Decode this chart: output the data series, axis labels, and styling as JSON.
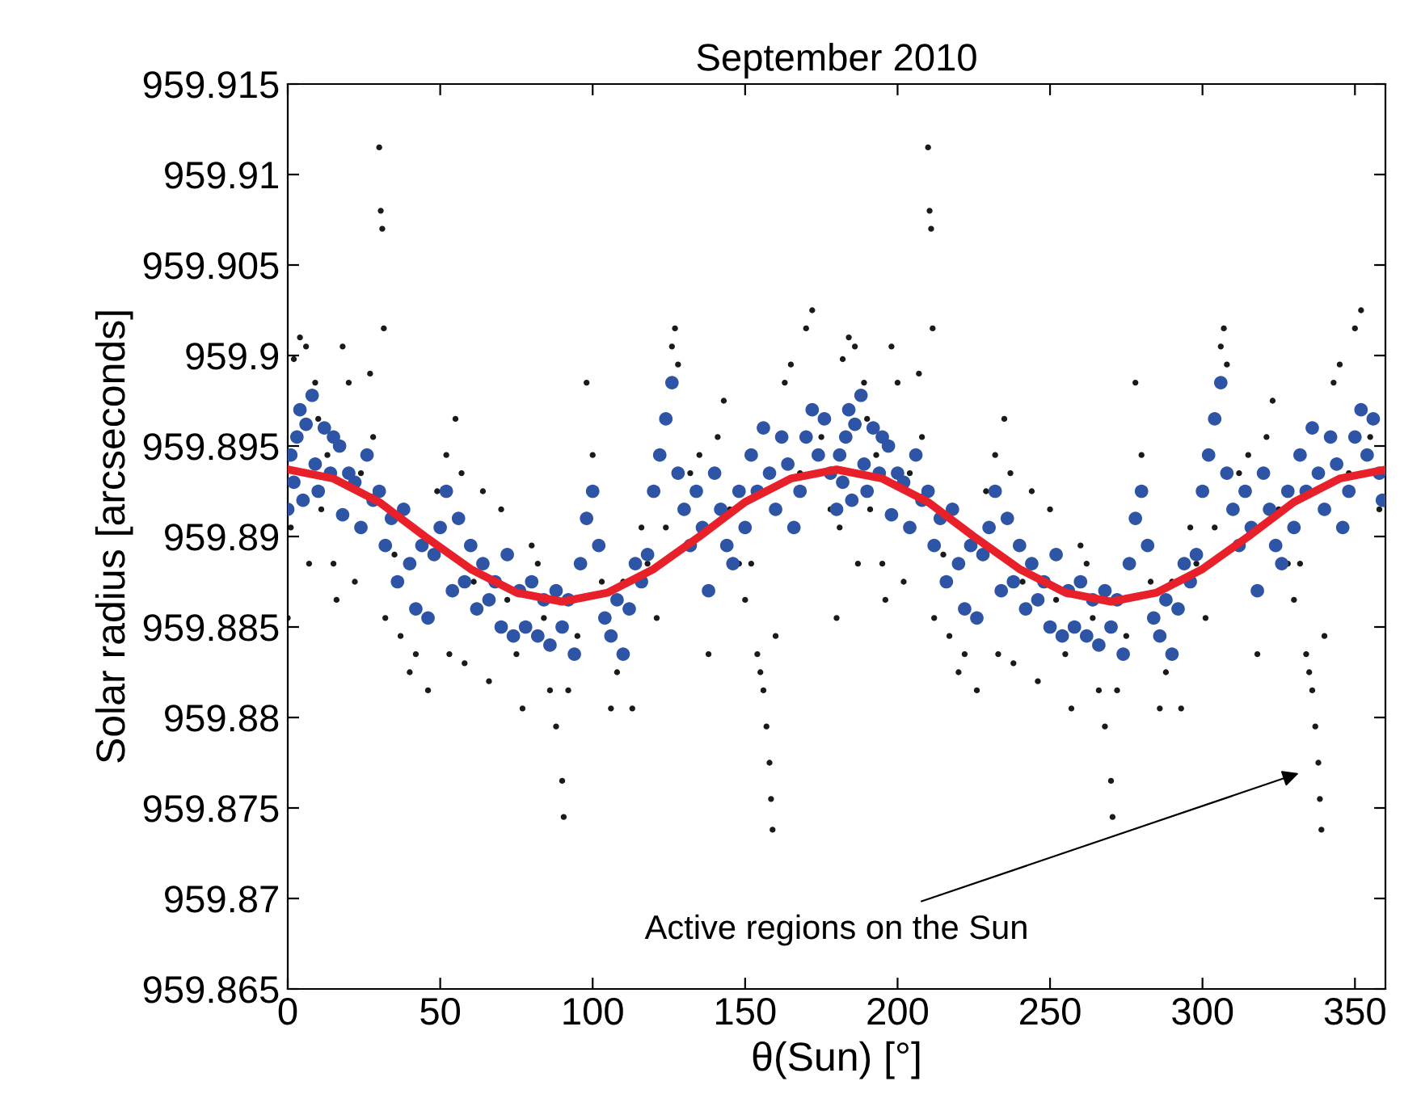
{
  "chart_data": {
    "type": "scatter",
    "title": "September 2010",
    "xlabel": "θ(Sun) [°]",
    "ylabel": "Solar radius [arcseconds]",
    "xlim": [
      0,
      360
    ],
    "xticks": [
      0,
      50,
      100,
      150,
      200,
      250,
      300,
      350
    ],
    "ylim": [
      959.865,
      959.915
    ],
    "yticks": [
      959.865,
      959.87,
      959.875,
      959.88,
      959.885,
      959.89,
      959.895,
      959.9,
      959.905,
      959.91,
      959.915
    ],
    "grid": false,
    "marker": "circle",
    "annotations": [
      "Active regions on the Sun"
    ],
    "series": [
      {
        "color": "#1a1a1a",
        "x": [
          0,
          1,
          2,
          4,
          6,
          7,
          9,
          10,
          11,
          13,
          15,
          16,
          18,
          20,
          22,
          24,
          27,
          28,
          30,
          30.5,
          31,
          31.5,
          32,
          35,
          37,
          40,
          42,
          46,
          49,
          52,
          53,
          55,
          57,
          58,
          61,
          64,
          66,
          70,
          72,
          75,
          77,
          80,
          82,
          84,
          86,
          88,
          90,
          90.5,
          92,
          95,
          98,
          100,
          103,
          106,
          108,
          110,
          113,
          116,
          118,
          121,
          124,
          126,
          127,
          128,
          132,
          135,
          138,
          141,
          143,
          145,
          148,
          150,
          152,
          154,
          155,
          156,
          157,
          158,
          158.5,
          159,
          160,
          163,
          165,
          168,
          170,
          172,
          175,
          178,
          180,
          181,
          182,
          184,
          186,
          187,
          189,
          190,
          191,
          193,
          195,
          196,
          198,
          200,
          202,
          204,
          207,
          208,
          210,
          210.5,
          211,
          211.5,
          212,
          215,
          217,
          220,
          222,
          226,
          229,
          232,
          233,
          235,
          237,
          238,
          241,
          244,
          246,
          250,
          252,
          255,
          257,
          260,
          262,
          264,
          266,
          268,
          270,
          270.5,
          272,
          275,
          278,
          280,
          283,
          286,
          288,
          290,
          293,
          296,
          298,
          301,
          304,
          306,
          307,
          308,
          312,
          315,
          318,
          321,
          323,
          325,
          328,
          330,
          332,
          334,
          335,
          336,
          337,
          338,
          338.5,
          339,
          340,
          343,
          345,
          348,
          350,
          352,
          355,
          358
        ],
        "values": [
          959.8855,
          959.8905,
          959.8998,
          959.901,
          959.9005,
          959.8885,
          959.8985,
          959.8965,
          959.8915,
          959.8945,
          959.8885,
          959.8865,
          959.9005,
          959.8985,
          959.8875,
          959.8935,
          959.899,
          959.8955,
          959.9115,
          959.908,
          959.907,
          959.9015,
          959.8855,
          959.889,
          959.8845,
          959.8825,
          959.8835,
          959.8815,
          959.8925,
          959.8945,
          959.8835,
          959.8965,
          959.8935,
          959.883,
          959.8875,
          959.8925,
          959.882,
          959.8915,
          959.8865,
          959.8835,
          959.8805,
          959.8895,
          959.8885,
          959.8855,
          959.8815,
          959.8795,
          959.8765,
          959.8745,
          959.8815,
          959.8845,
          959.8985,
          959.8945,
          959.8875,
          959.8805,
          959.8825,
          959.8875,
          959.8805,
          959.8905,
          959.8885,
          959.8855,
          959.8905,
          959.9005,
          959.9015,
          959.8995,
          959.8935,
          959.8945,
          959.8835,
          959.8955,
          959.8975,
          959.8915,
          959.8885,
          959.8865,
          959.8885,
          959.8835,
          959.8825,
          959.8815,
          959.8795,
          959.8775,
          959.8755,
          959.8738,
          959.8845,
          959.8985,
          959.8995,
          959.8935,
          959.9015,
          959.9025,
          959.8955,
          959.8915,
          959.8855,
          959.8905,
          959.8998,
          959.901,
          959.9005,
          959.8885,
          959.8985,
          959.8965,
          959.8915,
          959.8945,
          959.8885,
          959.8865,
          959.9005,
          959.8985,
          959.8875,
          959.8935,
          959.899,
          959.8955,
          959.9115,
          959.908,
          959.907,
          959.9015,
          959.8855,
          959.889,
          959.8845,
          959.8825,
          959.8835,
          959.8815,
          959.8925,
          959.8945,
          959.8835,
          959.8965,
          959.8935,
          959.883,
          959.8875,
          959.8925,
          959.882,
          959.8915,
          959.8865,
          959.8835,
          959.8805,
          959.8895,
          959.8885,
          959.8855,
          959.8815,
          959.8795,
          959.8765,
          959.8745,
          959.8815,
          959.8845,
          959.8985,
          959.8945,
          959.8875,
          959.8805,
          959.8825,
          959.8875,
          959.8805,
          959.8905,
          959.8885,
          959.8855,
          959.8905,
          959.9005,
          959.9015,
          959.8995,
          959.8935,
          959.8945,
          959.8835,
          959.8955,
          959.8975,
          959.8915,
          959.8885,
          959.8865,
          959.8885,
          959.8835,
          959.8825,
          959.8815,
          959.8795,
          959.8775,
          959.8755,
          959.8738,
          959.8845,
          959.8985,
          959.8995,
          959.8935,
          959.9015,
          959.9025,
          959.8955,
          959.8915
        ]
      },
      {
        "color": "#2e54a6",
        "x": [
          0,
          1,
          2,
          3,
          4,
          5,
          6,
          8,
          9,
          10,
          12,
          14,
          15,
          17,
          18,
          20,
          22,
          24,
          26,
          28,
          30,
          32,
          34,
          36,
          38,
          40,
          42,
          44,
          46,
          48,
          50,
          52,
          54,
          56,
          58,
          60,
          62,
          64,
          66,
          68,
          70,
          72,
          74,
          76,
          78,
          80,
          82,
          84,
          86,
          88,
          90,
          92,
          94,
          96,
          98,
          100,
          102,
          104,
          106,
          108,
          110,
          112,
          114,
          116,
          118,
          120,
          122,
          124,
          126,
          128,
          130,
          132,
          134,
          136,
          138,
          140,
          142,
          144,
          146,
          148,
          150,
          152,
          154,
          156,
          158,
          160,
          162,
          164,
          166,
          168,
          170,
          172,
          174,
          176,
          178,
          180,
          181,
          182,
          183,
          184,
          185,
          186,
          188,
          189,
          190,
          192,
          194,
          195,
          197,
          198,
          200,
          202,
          204,
          206,
          208,
          210,
          212,
          214,
          216,
          218,
          220,
          222,
          224,
          226,
          228,
          230,
          232,
          234,
          236,
          238,
          240,
          242,
          244,
          246,
          248,
          250,
          252,
          254,
          256,
          258,
          260,
          262,
          264,
          266,
          268,
          270,
          272,
          274,
          276,
          278,
          280,
          282,
          284,
          286,
          288,
          290,
          292,
          294,
          296,
          298,
          300,
          302,
          304,
          306,
          308,
          310,
          312,
          314,
          316,
          318,
          320,
          322,
          324,
          326,
          328,
          330,
          332,
          334,
          336,
          338,
          340,
          342,
          344,
          346,
          348,
          350,
          352,
          354,
          356,
          358,
          359
        ],
        "values": [
          959.8915,
          959.8945,
          959.893,
          959.8955,
          959.897,
          959.892,
          959.8962,
          959.8978,
          959.894,
          959.8925,
          959.896,
          959.8935,
          959.8955,
          959.895,
          959.8912,
          959.8935,
          959.893,
          959.8905,
          959.8945,
          959.892,
          959.8925,
          959.8895,
          959.891,
          959.8875,
          959.8915,
          959.8885,
          959.886,
          959.8895,
          959.8855,
          959.889,
          959.8905,
          959.8925,
          959.887,
          959.891,
          959.8875,
          959.8895,
          959.886,
          959.8885,
          959.8865,
          959.8875,
          959.885,
          959.889,
          959.8845,
          959.887,
          959.885,
          959.8875,
          959.8845,
          959.8865,
          959.884,
          959.887,
          959.885,
          959.8865,
          959.8835,
          959.8885,
          959.891,
          959.8925,
          959.8895,
          959.8855,
          959.8845,
          959.8865,
          959.8835,
          959.886,
          959.8885,
          959.8875,
          959.889,
          959.8925,
          959.8945,
          959.8965,
          959.8985,
          959.8935,
          959.8915,
          959.8895,
          959.8925,
          959.8905,
          959.887,
          959.8935,
          959.8915,
          959.8895,
          959.8885,
          959.8925,
          959.8905,
          959.8945,
          959.8925,
          959.896,
          959.8935,
          959.8915,
          959.8955,
          959.894,
          959.8905,
          959.8925,
          959.8955,
          959.897,
          959.8945,
          959.8965,
          959.8935,
          959.8915,
          959.8945,
          959.893,
          959.8955,
          959.897,
          959.892,
          959.8962,
          959.8978,
          959.894,
          959.8925,
          959.896,
          959.8935,
          959.8955,
          959.895,
          959.8912,
          959.8935,
          959.893,
          959.8905,
          959.8945,
          959.892,
          959.8925,
          959.8895,
          959.891,
          959.8875,
          959.8915,
          959.8885,
          959.886,
          959.8895,
          959.8855,
          959.889,
          959.8905,
          959.8925,
          959.887,
          959.891,
          959.8875,
          959.8895,
          959.886,
          959.8885,
          959.8865,
          959.8875,
          959.885,
          959.889,
          959.8845,
          959.887,
          959.885,
          959.8875,
          959.8845,
          959.8865,
          959.884,
          959.887,
          959.885,
          959.8865,
          959.8835,
          959.8885,
          959.891,
          959.8925,
          959.8895,
          959.8855,
          959.8845,
          959.8865,
          959.8835,
          959.886,
          959.8885,
          959.8875,
          959.889,
          959.8925,
          959.8945,
          959.8965,
          959.8985,
          959.8935,
          959.8915,
          959.8895,
          959.8925,
          959.8905,
          959.887,
          959.8935,
          959.8915,
          959.8895,
          959.8885,
          959.8925,
          959.8905,
          959.8945,
          959.8925,
          959.896,
          959.8935,
          959.8915,
          959.8955,
          959.894,
          959.8905,
          959.8925,
          959.8955,
          959.897,
          959.8945,
          959.8965,
          959.8935,
          959.892
        ]
      },
      {
        "type": "line",
        "color": "#e8202a",
        "marker": "none",
        "line_style": "solid",
        "x": [
          0,
          15,
          30,
          45,
          60,
          75,
          90,
          105,
          120,
          135,
          150,
          165,
          180,
          195,
          210,
          225,
          240,
          255,
          270,
          285,
          300,
          315,
          330,
          345,
          360
        ],
        "values": [
          959.8937,
          959.8932,
          959.8919,
          959.89,
          959.8882,
          959.8869,
          959.8864,
          959.8869,
          959.8882,
          959.89,
          959.8919,
          959.8932,
          959.8937,
          959.8932,
          959.8919,
          959.89,
          959.8882,
          959.8869,
          959.8864,
          959.8869,
          959.8882,
          959.89,
          959.8919,
          959.8932,
          959.8937
        ]
      }
    ]
  }
}
